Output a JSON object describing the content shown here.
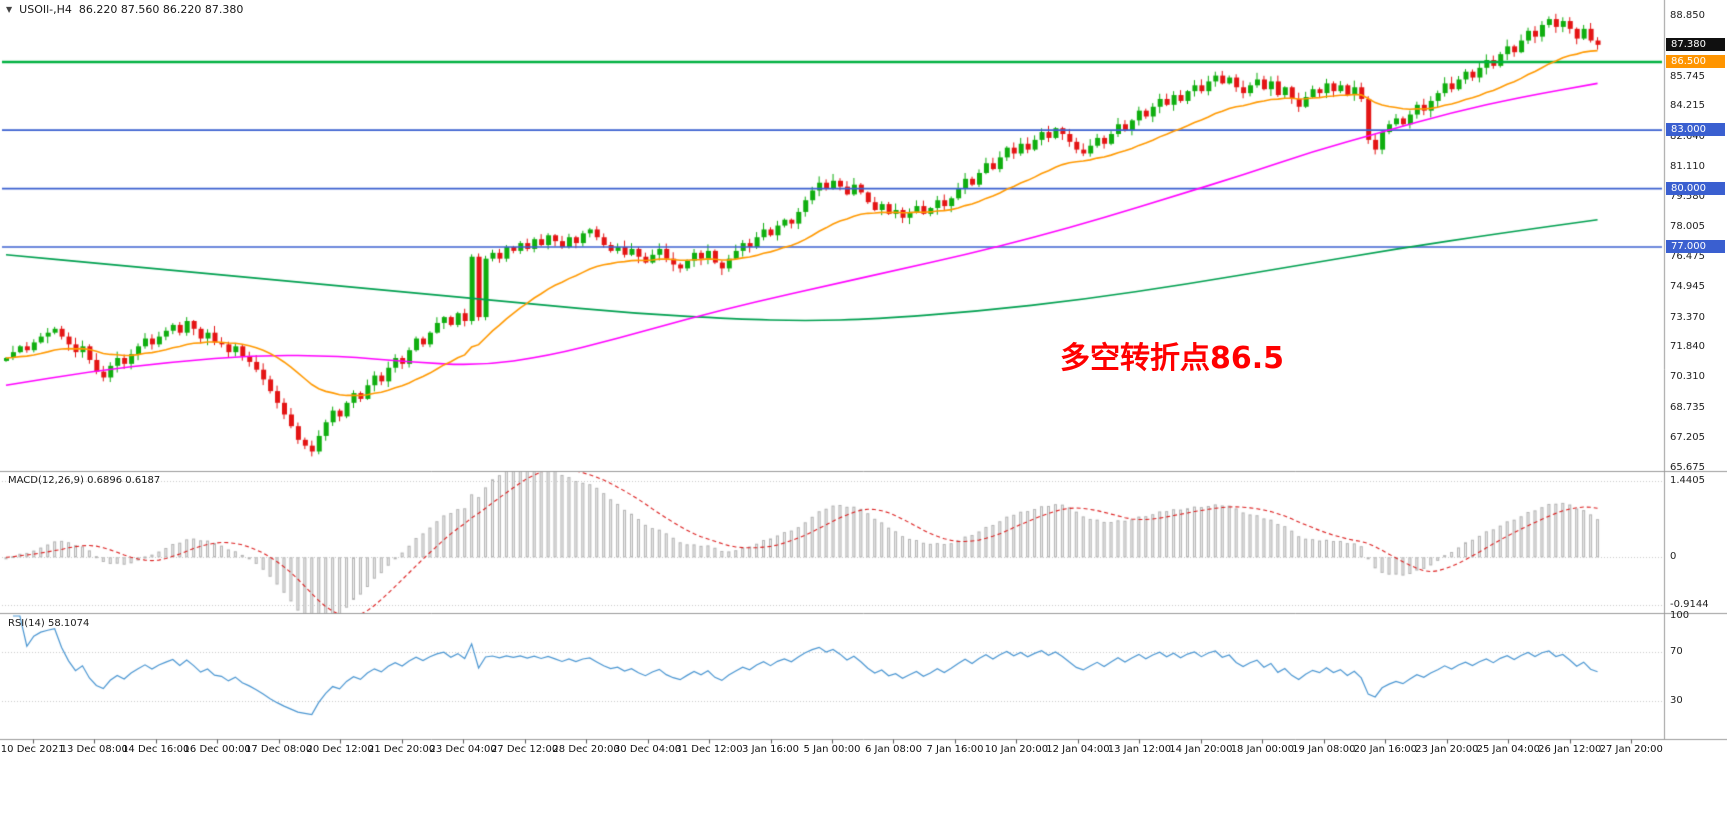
{
  "header": {
    "marker_icon": "▼",
    "symbol_timeframe": "USOIl-,H4",
    "ohlc": "86.220 87.560 86.220 87.380"
  },
  "annotation": {
    "text": "多空转折点86.5",
    "color": "#ff0000"
  },
  "time_axis": {
    "labels": [
      "10 Dec 2021",
      "13 Dec 08:00",
      "14 Dec 16:00",
      "16 Dec 00:00",
      "17 Dec 08:00",
      "20 Dec 12:00",
      "21 Dec 20:00",
      "23 Dec 04:00",
      "27 Dec 12:00",
      "28 Dec 20:00",
      "30 Dec 04:00",
      "31 Dec 12:00",
      "3 Jan 16:00",
      "5 Jan 00:00",
      "6 Jan 08:00",
      "7 Jan 16:00",
      "10 Jan 20:00",
      "12 Jan 04:00",
      "13 Jan 12:00",
      "14 Jan 20:00",
      "18 Jan 00:00",
      "19 Jan 08:00",
      "20 Jan 16:00",
      "23 Jan 20:00",
      "25 Jan 04:00",
      "26 Jan 12:00",
      "27 Jan 20:00"
    ]
  },
  "chart_data": [
    {
      "type": "candlestick",
      "symbol": "USOIl-",
      "timeframe": "H4",
      "title": "USOIl-,H4 86.220 87.560 86.220 87.380",
      "ylim": [
        65.55,
        89.27
      ],
      "closes": [
        71.3,
        71.6,
        71.9,
        71.7,
        72.1,
        72.4,
        72.6,
        72.8,
        72.4,
        72.0,
        71.6,
        71.9,
        71.2,
        70.6,
        70.3,
        70.9,
        71.3,
        71.0,
        71.5,
        71.9,
        72.3,
        72.0,
        72.4,
        72.7,
        73.0,
        72.6,
        73.2,
        72.8,
        72.3,
        72.6,
        72.1,
        72.0,
        71.6,
        71.9,
        71.4,
        71.1,
        70.7,
        70.2,
        69.6,
        69.0,
        68.4,
        67.8,
        67.1,
        66.8,
        66.5,
        67.3,
        68.0,
        68.6,
        68.3,
        69.0,
        69.5,
        69.2,
        69.9,
        70.4,
        70.1,
        70.8,
        71.3,
        71.0,
        71.7,
        72.3,
        72.0,
        72.6,
        73.1,
        73.4,
        73.0,
        73.6,
        73.2,
        76.5,
        73.4,
        76.4,
        76.7,
        76.4,
        77.0,
        76.8,
        77.2,
        76.9,
        77.4,
        77.1,
        77.6,
        77.3,
        77.0,
        77.5,
        77.2,
        77.7,
        77.9,
        77.5,
        77.1,
        76.8,
        77.0,
        76.6,
        76.9,
        76.5,
        76.2,
        76.6,
        76.9,
        76.4,
        76.1,
        75.9,
        76.3,
        76.7,
        76.4,
        76.8,
        76.2,
        75.9,
        76.4,
        76.8,
        77.2,
        77.0,
        77.5,
        77.9,
        77.6,
        78.1,
        78.4,
        78.2,
        78.8,
        79.4,
        79.9,
        80.3,
        80.0,
        80.4,
        80.1,
        79.7,
        80.2,
        79.8,
        79.3,
        78.9,
        79.2,
        78.7,
        78.9,
        78.5,
        78.8,
        79.1,
        78.7,
        79.0,
        79.4,
        79.1,
        79.5,
        80.0,
        80.5,
        80.2,
        80.8,
        81.3,
        81.0,
        81.6,
        82.1,
        81.8,
        82.3,
        82.0,
        82.5,
        82.9,
        82.6,
        83.1,
        82.8,
        82.4,
        82.0,
        81.8,
        82.2,
        82.6,
        82.3,
        82.8,
        83.3,
        83.0,
        83.5,
        84.0,
        83.7,
        84.2,
        84.6,
        84.3,
        84.8,
        84.5,
        85.0,
        85.3,
        85.0,
        85.5,
        85.8,
        85.4,
        85.7,
        85.2,
        84.9,
        85.3,
        85.6,
        85.1,
        85.5,
        84.8,
        85.2,
        84.6,
        84.2,
        84.7,
        85.1,
        84.9,
        85.4,
        85.0,
        85.3,
        84.8,
        85.2,
        84.6,
        82.5,
        82.0,
        82.9,
        83.3,
        83.6,
        83.3,
        83.8,
        84.3,
        84.0,
        84.5,
        84.9,
        85.4,
        85.1,
        85.6,
        86.0,
        85.7,
        86.2,
        86.6,
        86.3,
        86.9,
        87.3,
        87.0,
        87.6,
        88.1,
        87.8,
        88.4,
        88.7,
        88.3,
        88.6,
        88.2,
        87.7,
        88.2,
        87.6,
        87.38
      ],
      "axis_ticks": [
        "88.850",
        "85.745",
        "84.215",
        "82.640",
        "81.110",
        "79.580",
        "78.005",
        "76.475",
        "74.945",
        "73.370",
        "71.840",
        "70.310",
        "68.735",
        "67.205",
        "65.675"
      ],
      "badges": [
        {
          "label": "87.380",
          "price": 87.38,
          "bg": "#101010"
        },
        {
          "label": "86.500",
          "price": 86.5,
          "bg": "#ff9500"
        },
        {
          "label": "83.000",
          "price": 83.0,
          "bg": "#3a5fd0"
        },
        {
          "label": "80.000",
          "price": 80.0,
          "bg": "#3a5fd0"
        },
        {
          "label": "77.000",
          "price": 77.0,
          "bg": "#3a5fd0"
        }
      ],
      "hlines": [
        {
          "price": 86.5,
          "color": "#00b140",
          "width": 2.4
        },
        {
          "price": 83.0,
          "color": "#3a5fd0",
          "width": 1.7
        },
        {
          "price": 80.0,
          "color": "#3a5fd0",
          "width": 1.7
        },
        {
          "price": 77.0,
          "color": "#3a5fd0",
          "width": 1.7
        }
      ],
      "colors": {
        "up": "#0fae0f",
        "down": "#e41414"
      },
      "ma_fast": {
        "type": "ema",
        "period": 24,
        "color": "#ff9900"
      },
      "ma_mid": {
        "color": "#ff00ff",
        "anchors": [
          [
            0,
            69.9
          ],
          [
            12,
            70.6
          ],
          [
            24,
            71.1
          ],
          [
            36,
            71.45
          ],
          [
            48,
            71.4
          ],
          [
            58,
            71.1
          ],
          [
            68,
            70.9
          ],
          [
            78,
            71.4
          ],
          [
            88,
            72.3
          ],
          [
            98,
            73.3
          ],
          [
            108,
            74.2
          ],
          [
            118,
            75.0
          ],
          [
            128,
            75.8
          ],
          [
            138,
            76.6
          ],
          [
            148,
            77.5
          ],
          [
            158,
            78.5
          ],
          [
            168,
            79.6
          ],
          [
            178,
            80.7
          ],
          [
            188,
            81.9
          ],
          [
            198,
            82.9
          ],
          [
            208,
            83.9
          ],
          [
            218,
            84.7
          ],
          [
            229,
            85.4
          ]
        ]
      },
      "ma_slow": {
        "color": "#00a050",
        "anchors": [
          [
            0,
            76.6
          ],
          [
            15,
            76.1
          ],
          [
            30,
            75.6
          ],
          [
            45,
            75.1
          ],
          [
            60,
            74.6
          ],
          [
            75,
            74.1
          ],
          [
            90,
            73.6
          ],
          [
            105,
            73.3
          ],
          [
            115,
            73.2
          ],
          [
            125,
            73.3
          ],
          [
            140,
            73.7
          ],
          [
            155,
            74.3
          ],
          [
            170,
            75.1
          ],
          [
            185,
            76.0
          ],
          [
            200,
            76.9
          ],
          [
            215,
            77.7
          ],
          [
            229,
            78.4
          ]
        ]
      }
    },
    {
      "type": "macd",
      "label_text": "MACD(12,26,9) 0.6896 0.6187",
      "params": [
        12,
        26,
        9
      ],
      "values": [
        0.6896,
        0.6187
      ],
      "ylim": [
        -1.0,
        1.6
      ],
      "axis_ticks": [
        {
          "label": "1.4405",
          "value": 1.4405
        },
        {
          "label": "0",
          "value": 0
        },
        {
          "label": "-0.9144",
          "value": -0.9144
        }
      ],
      "colors": {
        "hist_fill": "#ededed",
        "hist_stroke": "#b5b5b5",
        "signal": "#dd2020",
        "level": "#c9c9c9"
      }
    },
    {
      "type": "rsi",
      "label_text": "RSI(14) 58.1074",
      "period": 14,
      "value": 58.1074,
      "ylim": [
        0,
        100
      ],
      "axis_ticks": [
        {
          "label": "100",
          "value": 100
        },
        {
          "label": "70",
          "value": 70
        },
        {
          "label": "30",
          "value": 30
        }
      ],
      "levels": [
        70,
        30
      ],
      "colors": {
        "line": "#4a96d2",
        "level": "#c8c8c8"
      }
    }
  ]
}
